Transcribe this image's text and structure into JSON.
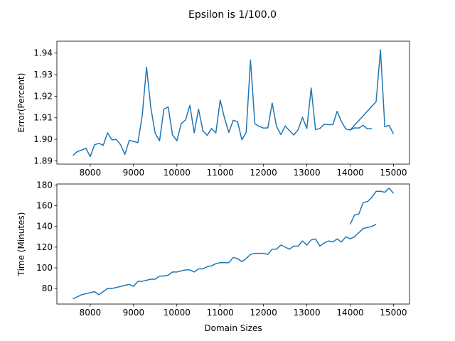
{
  "figure": {
    "suptitle": "Epsilon is 1/100.0"
  },
  "chart_data": [
    {
      "type": "line",
      "title": "",
      "xlabel": "",
      "ylabel": "Error(Percent)",
      "xlim": [
        7230,
        15370
      ],
      "ylim": [
        1.8885,
        1.9455
      ],
      "xticks": [
        8000,
        9000,
        10000,
        11000,
        12000,
        13000,
        14000,
        15000
      ],
      "yticks": [
        1.89,
        1.9,
        1.91,
        1.92,
        1.93,
        1.94
      ],
      "ytick_labels": [
        "1.89",
        "1.90",
        "1.91",
        "1.92",
        "1.93",
        "1.94"
      ],
      "grid": false,
      "color": "#1f77b4",
      "series": [
        {
          "x": [
            7600,
            7700,
            7800,
            7900,
            8000,
            8100,
            8200,
            8300,
            8400,
            8500,
            8600,
            8700,
            8800,
            8900,
            9000,
            9100,
            9200,
            9300,
            9400,
            9500,
            9600,
            9700,
            9800,
            9900,
            10000,
            10100,
            10200,
            10300,
            10400,
            10500,
            10600,
            10700,
            10800,
            10900,
            11000,
            11100,
            11200,
            11300,
            11400,
            11500,
            11600,
            11700,
            11800,
            11900,
            12000,
            12100,
            12200,
            12300,
            12400,
            12500,
            12600,
            12700,
            12800,
            12900,
            13000,
            13100,
            13200,
            13300,
            13400,
            13500,
            13600,
            13700,
            13800,
            13900,
            14000,
            14600,
            14700,
            14800,
            14900,
            15000
          ],
          "y": [
            1.8925,
            1.8943,
            1.895,
            1.8958,
            1.892,
            1.8975,
            1.8981,
            1.8972,
            1.903,
            1.8997,
            1.9,
            1.8975,
            1.893,
            1.8995,
            1.899,
            1.8985,
            1.911,
            1.9335,
            1.9145,
            1.9028,
            1.8993,
            1.914,
            1.915,
            1.902,
            1.8993,
            1.9073,
            1.909,
            1.9158,
            1.903,
            1.914,
            1.904,
            1.9018,
            1.905,
            1.903,
            1.9182,
            1.9098,
            1.9032,
            1.9088,
            1.9082,
            1.8998,
            1.9032,
            1.9368,
            1.9072,
            1.906,
            1.9052,
            1.9053,
            1.9168,
            1.906,
            1.9022,
            1.9062,
            1.904,
            1.902,
            1.9045,
            1.9102,
            1.905,
            1.9238,
            1.9045,
            1.905,
            1.907,
            1.9068,
            1.9068,
            1.913,
            1.9082,
            1.9048,
            1.9043,
            1.9175,
            1.9415,
            1.9058,
            1.9065,
            1.9025
          ]
        },
        {
          "x": [
            14000,
            14100,
            14200,
            14300,
            14400,
            14500
          ],
          "y": [
            1.9043,
            1.9053,
            1.9052,
            1.9065,
            1.9048,
            1.905
          ]
        }
      ]
    },
    {
      "type": "line",
      "title": "",
      "xlabel": "Domain Sizes",
      "ylabel": "Time (Minutes)",
      "xlim": [
        7230,
        15370
      ],
      "ylim": [
        65,
        181
      ],
      "xticks": [
        8000,
        9000,
        10000,
        11000,
        12000,
        13000,
        14000,
        15000
      ],
      "yticks": [
        80,
        100,
        120,
        140,
        160,
        180
      ],
      "ytick_labels": [
        "80",
        "100",
        "120",
        "140",
        "160",
        "180"
      ],
      "grid": false,
      "color": "#1f77b4",
      "series": [
        {
          "x": [
            7600,
            7700,
            7800,
            7900,
            8000,
            8100,
            8200,
            8300,
            8400,
            8500,
            8600,
            8700,
            8800,
            8900,
            9000,
            9100,
            9200,
            9300,
            9400,
            9500,
            9600,
            9700,
            9800,
            9900,
            10000,
            10100,
            10200,
            10300,
            10400,
            10500,
            10600,
            10700,
            10800,
            10900,
            11000,
            11100,
            11200,
            11300,
            11400,
            11500,
            11600,
            11700,
            11800,
            11900,
            12000,
            12100,
            12200,
            12300,
            12400,
            12500,
            12600,
            12700,
            12800,
            12900,
            13000,
            13100,
            13200,
            13300,
            13400,
            13500,
            13600,
            13700,
            13800,
            13900,
            14000,
            14100,
            14200,
            14300,
            14400,
            14500,
            14600
          ],
          "y": [
            70,
            72,
            74,
            75,
            76,
            77,
            74,
            77,
            80,
            80,
            81,
            82,
            83,
            84,
            82,
            87,
            87,
            88,
            89,
            89,
            92,
            92,
            93,
            96,
            96,
            97,
            98,
            98,
            96,
            99,
            99,
            101,
            102,
            104,
            105,
            105,
            105,
            110,
            109,
            106,
            109,
            113,
            114,
            114,
            114,
            113,
            118,
            118,
            122,
            120,
            118,
            121,
            121,
            126,
            122,
            127,
            128,
            121,
            124,
            126,
            125,
            128,
            125,
            130,
            128,
            130,
            134,
            138,
            139,
            140,
            142
          ]
        },
        {
          "x": [
            14000,
            14100,
            14200,
            14300,
            14400,
            14500,
            14600,
            14700,
            14800,
            14900,
            15000
          ],
          "y": [
            142,
            151,
            152,
            163,
            164,
            168,
            174,
            174,
            173,
            177,
            172
          ]
        }
      ]
    }
  ]
}
